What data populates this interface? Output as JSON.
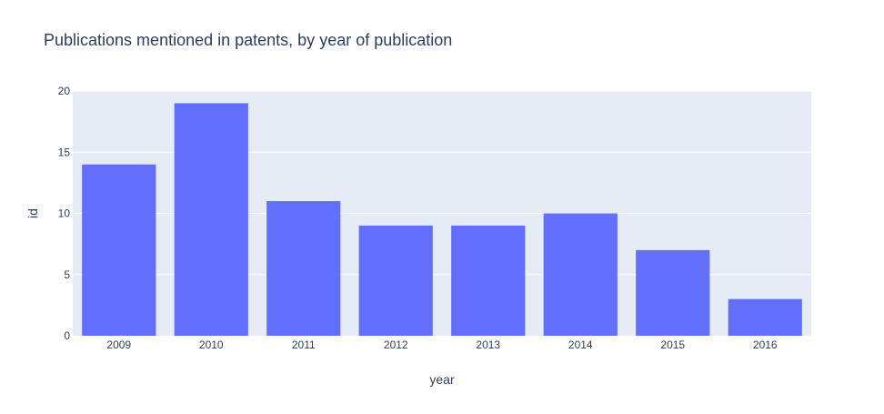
{
  "chart_data": {
    "type": "bar",
    "title": "Publications mentioned in patents, by year of publication",
    "xlabel": "year",
    "ylabel": "id",
    "categories": [
      "2009",
      "2010",
      "2011",
      "2012",
      "2013",
      "2014",
      "2015",
      "2016"
    ],
    "values": [
      14,
      19,
      11,
      9,
      9,
      10,
      7,
      3
    ],
    "ylim": [
      0,
      20
    ],
    "yticks": [
      "0",
      "5",
      "10",
      "15",
      "20"
    ],
    "grid": true,
    "legend": "none",
    "colors": {
      "bar": "#636efa",
      "plot_bg": "#e5ecf6",
      "grid": "#ffffff",
      "text": "#2a3f5f"
    }
  }
}
